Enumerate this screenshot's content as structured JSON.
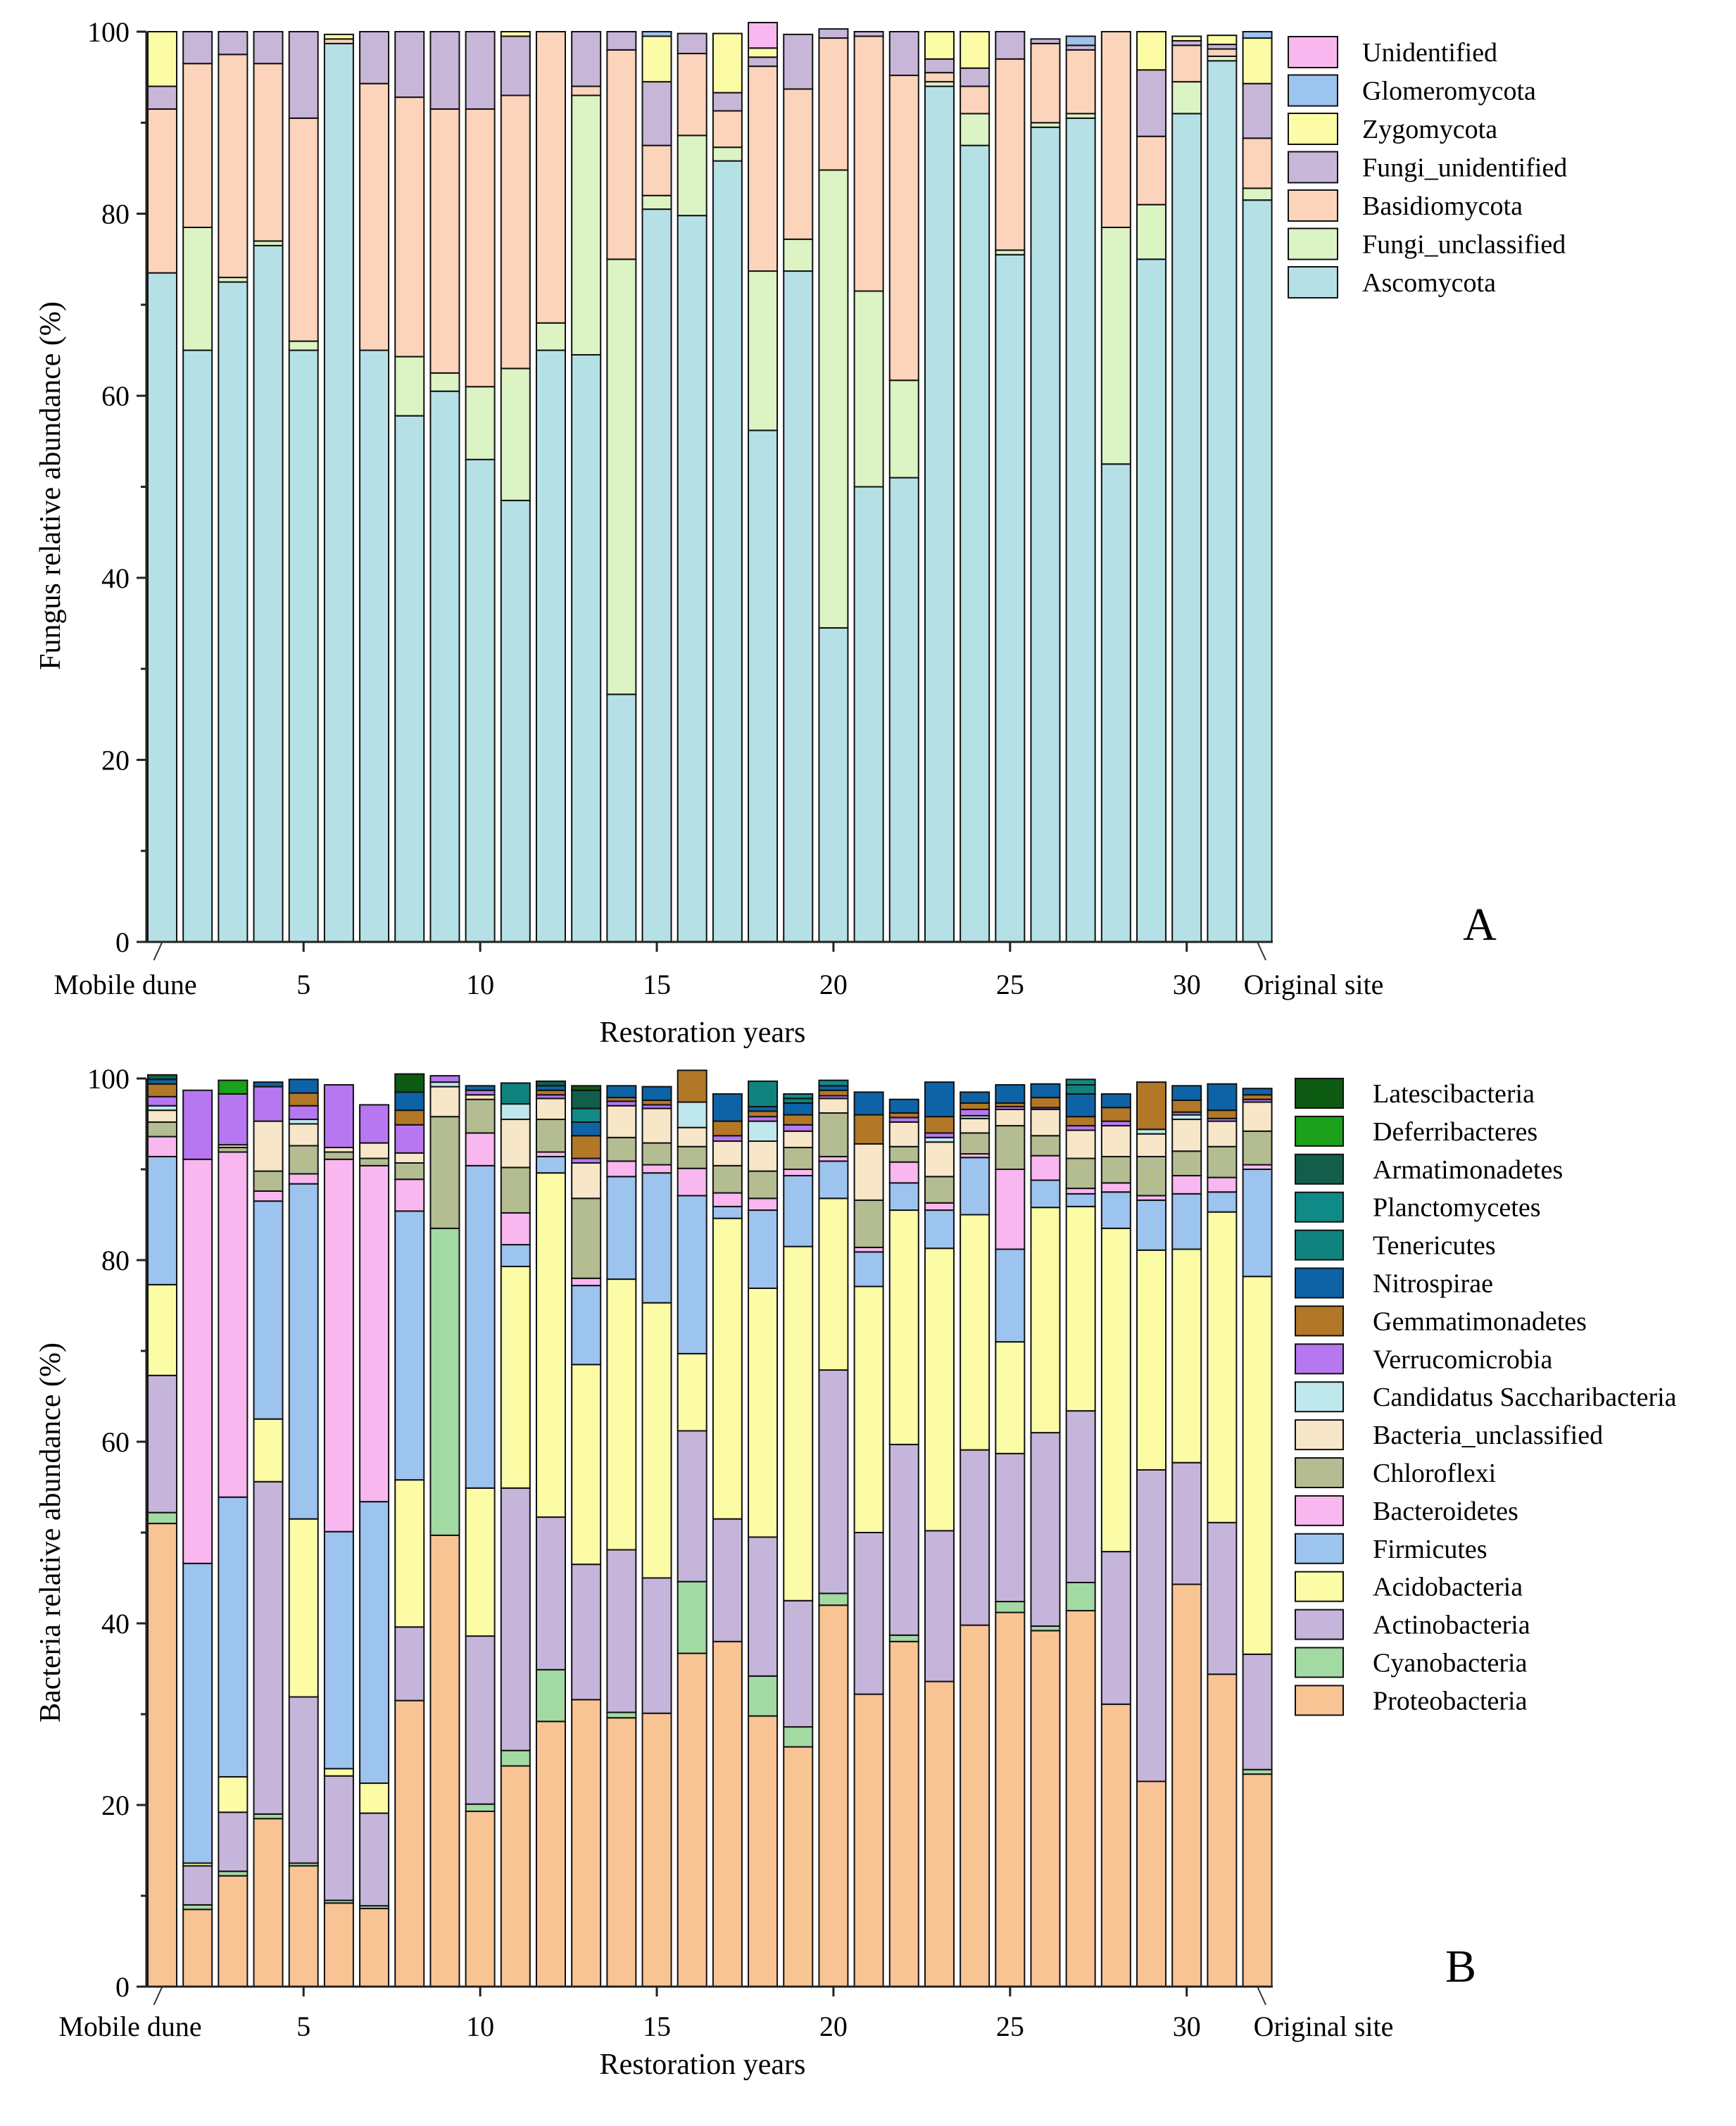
{
  "chart_data": [
    {
      "id": "fungi",
      "type": "bar",
      "stacked": true,
      "panel_letter": "A",
      "ylabel": "Fungus relative abundance (%)",
      "xlabel": "Restoration years",
      "ylim": [
        0,
        100
      ],
      "yticks": [
        0,
        20,
        40,
        60,
        80,
        100
      ],
      "x": [
        0,
        2,
        3,
        4,
        5,
        6,
        7,
        8,
        9,
        10,
        11,
        12,
        13,
        14,
        15,
        16,
        17,
        18,
        19,
        20,
        21,
        22,
        23,
        24,
        25,
        26,
        27,
        28,
        29,
        30,
        31,
        32
      ],
      "xticks": [
        {
          "bar": 0,
          "label": "Mobile dune"
        },
        {
          "bar": 4,
          "label": "5"
        },
        {
          "bar": 9,
          "label": "10"
        },
        {
          "bar": 14,
          "label": "15"
        },
        {
          "bar": 19,
          "label": "20"
        },
        {
          "bar": 24,
          "label": "25"
        },
        {
          "bar": 29,
          "label": "30"
        },
        {
          "bar": 31,
          "label": "Original site"
        }
      ],
      "series": [
        {
          "name": "Ascomycota",
          "color": "#b5e1e6",
          "values": [
            73.5,
            65,
            72.5,
            76.5,
            65,
            98.7,
            65,
            57.8,
            60.5,
            53,
            48.5,
            65,
            64.5,
            27.2,
            80.5,
            79.8,
            85.8,
            56.2,
            73.7,
            34.5,
            50,
            51,
            94,
            87.5,
            75.5,
            89.5,
            90.5,
            52.5,
            75,
            91,
            96.8,
            81.5
          ]
        },
        {
          "name": "Fungi_unclassified",
          "color": "#dcf3c4",
          "values": [
            0,
            13.5,
            0.5,
            0.5,
            1,
            0,
            0,
            6.5,
            2,
            8,
            14.5,
            3,
            28.5,
            47.8,
            1.5,
            8.8,
            1.5,
            17.5,
            3.5,
            50.3,
            21.5,
            10.7,
            0.5,
            3.5,
            0.5,
            0.5,
            0.5,
            26,
            6,
            3.5,
            0.5,
            1.3
          ]
        },
        {
          "name": "Basidiomycota",
          "color": "#fbd4bb",
          "values": [
            18,
            18,
            24.5,
            19.5,
            24.5,
            0.5,
            29.3,
            28.5,
            29,
            30.5,
            30,
            32,
            1,
            23,
            5.5,
            9,
            4,
            22.5,
            16.5,
            14.5,
            28,
            33.5,
            1,
            3,
            21,
            8.7,
            7,
            21.5,
            7.5,
            4,
            0.8,
            5.5
          ]
        },
        {
          "name": "Fungi_unidentified",
          "color": "#c8b6d9",
          "values": [
            2.5,
            3.5,
            2.5,
            3.5,
            9.5,
            0,
            5.7,
            7.2,
            8.5,
            8.5,
            6.5,
            0,
            6,
            2,
            7,
            2.2,
            2,
            1,
            6,
            1,
            0.5,
            4.8,
            1.5,
            2,
            3,
            0.5,
            0.5,
            0,
            7.3,
            0.5,
            0.5,
            6
          ]
        },
        {
          "name": "Zygomycota",
          "color": "#fcfca7",
          "values": [
            6,
            0,
            0,
            0,
            0,
            0.5,
            0,
            0,
            0,
            0,
            0.5,
            0,
            0,
            0,
            5,
            0,
            6.5,
            1,
            0,
            0,
            0,
            0,
            3,
            4,
            0,
            0,
            0,
            0,
            4.2,
            0.5,
            1,
            5
          ]
        },
        {
          "name": "Glomeromycota",
          "color": "#9dc3ef",
          "values": [
            0,
            0,
            0,
            0,
            0,
            0,
            0,
            0,
            0,
            0,
            0,
            0,
            0,
            0,
            0.5,
            0,
            0,
            0,
            0,
            0,
            0,
            0,
            0,
            0,
            0,
            0,
            1,
            0,
            0,
            0,
            0,
            0.7
          ]
        },
        {
          "name": "Unidentified",
          "color": "#f8b7ef",
          "values": [
            0,
            0,
            0,
            0,
            0,
            0,
            0,
            0,
            0,
            0,
            0,
            0,
            0,
            0,
            0,
            0,
            0,
            2.8,
            0,
            0,
            0,
            0,
            0,
            0,
            0,
            0,
            0,
            0,
            0,
            0,
            0,
            0
          ]
        }
      ]
    },
    {
      "id": "bacteria",
      "type": "bar",
      "stacked": true,
      "panel_letter": "B",
      "ylabel": "Bacteria relative abundance (%)",
      "xlabel": "Restoration years",
      "ylim": [
        0,
        100
      ],
      "yticks": [
        0,
        20,
        40,
        60,
        80,
        100
      ],
      "x": [
        0,
        2,
        3,
        4,
        5,
        6,
        7,
        8,
        9,
        10,
        11,
        12,
        13,
        14,
        15,
        16,
        17,
        18,
        19,
        20,
        21,
        22,
        23,
        24,
        25,
        26,
        27,
        28,
        29,
        30,
        31,
        32
      ],
      "xticks": [
        {
          "bar": 0,
          "label": "Mobile dune"
        },
        {
          "bar": 4,
          "label": "5"
        },
        {
          "bar": 9,
          "label": "10"
        },
        {
          "bar": 14,
          "label": "15"
        },
        {
          "bar": 19,
          "label": "20"
        },
        {
          "bar": 24,
          "label": "25"
        },
        {
          "bar": 29,
          "label": "30"
        },
        {
          "bar": 31,
          "label": "Original site"
        }
      ],
      "series": [
        {
          "name": "Proteobacteria",
          "color": "#f9c494",
          "values": [
            51,
            8.5,
            12.2,
            18.5,
            13.3,
            9.2,
            8.6,
            31.5,
            49.7,
            19.3,
            24.3,
            29.2,
            31.6,
            29.6,
            30.1,
            36.7,
            38,
            29.8,
            26.4,
            42,
            32.2,
            38,
            33.6,
            39.8,
            41.2,
            39.2,
            41.4,
            31.1,
            22.6,
            44.3,
            34.4,
            23.4
          ]
        },
        {
          "name": "Cyanobacteria",
          "color": "#a3d9a3",
          "values": [
            1.2,
            0.5,
            0.5,
            0.5,
            0.3,
            0.3,
            0.3,
            0,
            33.8,
            0.8,
            1.7,
            5.7,
            0,
            0.6,
            0,
            7.9,
            0,
            4.4,
            2.2,
            1.3,
            0,
            0.7,
            0,
            0,
            1.2,
            0.5,
            3.1,
            0,
            0,
            0,
            0,
            0.5
          ]
        },
        {
          "name": "Actinobacteria",
          "color": "#c6b5db",
          "values": [
            15.1,
            4.3,
            6.5,
            36.6,
            18.3,
            13.7,
            10.2,
            8.1,
            0,
            18.5,
            28.9,
            16.8,
            14.9,
            17.9,
            14.9,
            16.6,
            13.5,
            15.3,
            13.9,
            24.6,
            17.8,
            21,
            16.6,
            19.3,
            16.3,
            21.3,
            18.9,
            16.8,
            34.3,
            13.4,
            16.7,
            12.7
          ]
        },
        {
          "name": "Acidobacteria",
          "color": "#fcfca7",
          "values": [
            10,
            0.3,
            3.9,
            6.9,
            19.6,
            0.8,
            3.3,
            16.2,
            0,
            16.3,
            24.4,
            37.9,
            22,
            29.8,
            30.3,
            8.5,
            33.1,
            27.4,
            39,
            18.9,
            27.1,
            25.8,
            31.1,
            25.9,
            12.3,
            24.8,
            22.5,
            35.6,
            24.2,
            23.5,
            34.2,
            41.6
          ]
        },
        {
          "name": "Firmicutes",
          "color": "#9dc3ef",
          "values": [
            14.1,
            33,
            30.8,
            24,
            36.9,
            26.1,
            31,
            29.6,
            0,
            35.5,
            2.4,
            1.8,
            8.7,
            11.3,
            14.3,
            17.4,
            1.3,
            8.6,
            7.8,
            4.1,
            3.8,
            3,
            4.2,
            6.3,
            10.2,
            3,
            1.4,
            4,
            5.5,
            6.1,
            2.2,
            11.8
          ]
        },
        {
          "name": "Bacteroidetes",
          "color": "#f8b7ef",
          "values": [
            2.2,
            44.5,
            38,
            1.1,
            1.1,
            41,
            37,
            3.5,
            0,
            3.6,
            3.5,
            0.5,
            0.8,
            1.7,
            0.9,
            3,
            1.5,
            1.3,
            0.7,
            0.5,
            0.5,
            2.3,
            0.8,
            0.4,
            8.8,
            2.7,
            0.6,
            1,
            0.5,
            2,
            1.6,
            0.5
          ]
        },
        {
          "name": "Chloroflexi",
          "color": "#b4bc92",
          "values": [
            1.6,
            0,
            0.5,
            2.2,
            3.1,
            0.8,
            0.8,
            1.8,
            12.3,
            3.7,
            5,
            3.6,
            8.8,
            2.6,
            2.4,
            2.4,
            3,
            3,
            2.4,
            4.8,
            5.2,
            1.7,
            2.9,
            2.3,
            4.8,
            2.2,
            3.3,
            2.9,
            4.3,
            2.7,
            3.4,
            3.7
          ]
        },
        {
          "name": "Bacteria_unclassified",
          "color": "#f7e7c8",
          "values": [
            1.3,
            0,
            0.3,
            5.5,
            2.4,
            0.5,
            1.7,
            1.1,
            3.3,
            0.5,
            5.3,
            2.3,
            3.9,
            3.5,
            3.8,
            2.1,
            2.7,
            3.3,
            1.8,
            1.6,
            6.2,
            2.7,
            3.8,
            1.6,
            1.8,
            2.9,
            3.1,
            3.4,
            2.5,
            3.5,
            2.8,
            3.2
          ]
        },
        {
          "name": "Candidatus Saccharibacteria",
          "color": "#bfe8ec",
          "values": [
            0.5,
            0,
            0,
            0,
            0.5,
            0,
            0,
            0,
            0.5,
            0,
            1.7,
            0,
            0,
            0,
            0,
            2.8,
            0,
            2.2,
            0,
            0,
            0,
            0,
            0.5,
            0.3,
            0,
            0,
            0,
            0,
            0.5,
            0.5,
            0,
            0
          ]
        },
        {
          "name": "Verrucomicrobia",
          "color": "#b777f0",
          "values": [
            1,
            7.6,
            5.6,
            3.8,
            1.5,
            6.9,
            4.2,
            3.1,
            0.7,
            0.5,
            0,
            0.4,
            0.5,
            0.5,
            0.4,
            0,
            0.6,
            0.5,
            0.7,
            0.3,
            0,
            0.5,
            0.5,
            0.7,
            0.3,
            0.2,
            0.5,
            0.5,
            0,
            0.3,
            0.3,
            0.3
          ]
        },
        {
          "name": "Gemmatimonadetes",
          "color": "#b27828",
          "values": [
            1.4,
            0,
            0,
            0,
            1.4,
            0,
            0,
            1.6,
            0,
            0,
            0,
            0.5,
            2.5,
            0.4,
            0.5,
            3.5,
            1.6,
            0.6,
            1.1,
            0.6,
            3.2,
            0.5,
            1.8,
            0.7,
            0.4,
            1.1,
            1,
            1.5,
            5.2,
            1.3,
            0.9,
            0.5
          ]
        },
        {
          "name": "Nitrospirae",
          "color": "#0e63a6",
          "values": [
            0.5,
            0,
            0,
            0.5,
            1.5,
            0,
            0,
            2,
            0,
            0.5,
            0,
            0.5,
            1.5,
            1.3,
            1.5,
            0,
            3,
            0.5,
            1.3,
            0.5,
            2.5,
            1.5,
            3.8,
            1.2,
            2,
            1.5,
            2.5,
            1.5,
            0,
            1.6,
            2.9,
            0.7
          ]
        },
        {
          "name": "Tenericutes",
          "color": "#10837f",
          "values": [
            0,
            0,
            0,
            0,
            0,
            0,
            0,
            0,
            0,
            0,
            2.3,
            0,
            0,
            0,
            0,
            0,
            0,
            2.8,
            0.5,
            0,
            0,
            0,
            0,
            0,
            0,
            0,
            1,
            0,
            0,
            0,
            0,
            0
          ]
        },
        {
          "name": "Planctomycetes",
          "color": "#0f8a86",
          "values": [
            0,
            0,
            0,
            0,
            0,
            0,
            0,
            0,
            0,
            0,
            0,
            0,
            1.5,
            0,
            0,
            0,
            0,
            0,
            0.5,
            0.6,
            0,
            0,
            0,
            0,
            0,
            0,
            0.6,
            0,
            0,
            0,
            0,
            0
          ]
        },
        {
          "name": "Armatimonadetes",
          "color": "#125e4b",
          "values": [
            0.5,
            0,
            0,
            0,
            0,
            0,
            0,
            0,
            0,
            0,
            0,
            0.5,
            2,
            0,
            0,
            0,
            0,
            0,
            0,
            0,
            0,
            0,
            0,
            0,
            0,
            0,
            0,
            0,
            0,
            0,
            0,
            0
          ]
        },
        {
          "name": "Deferribacteres",
          "color": "#1ba11b",
          "values": [
            0,
            0,
            1.5,
            0,
            0,
            0,
            0,
            0,
            0,
            0,
            0,
            0,
            0,
            0,
            0,
            0,
            0,
            0,
            0,
            0,
            0,
            0,
            0,
            0,
            0,
            0,
            0,
            0,
            0,
            0,
            0,
            0
          ]
        },
        {
          "name": "Latescibacteria",
          "color": "#0d5a12",
          "values": [
            0,
            0,
            0,
            0,
            0,
            0,
            0,
            2,
            0,
            0,
            0,
            0,
            0.5,
            0,
            0,
            0,
            0,
            0,
            0,
            0,
            0,
            0,
            0,
            0,
            0,
            0,
            0,
            0,
            0,
            0,
            0,
            0
          ]
        }
      ]
    }
  ]
}
